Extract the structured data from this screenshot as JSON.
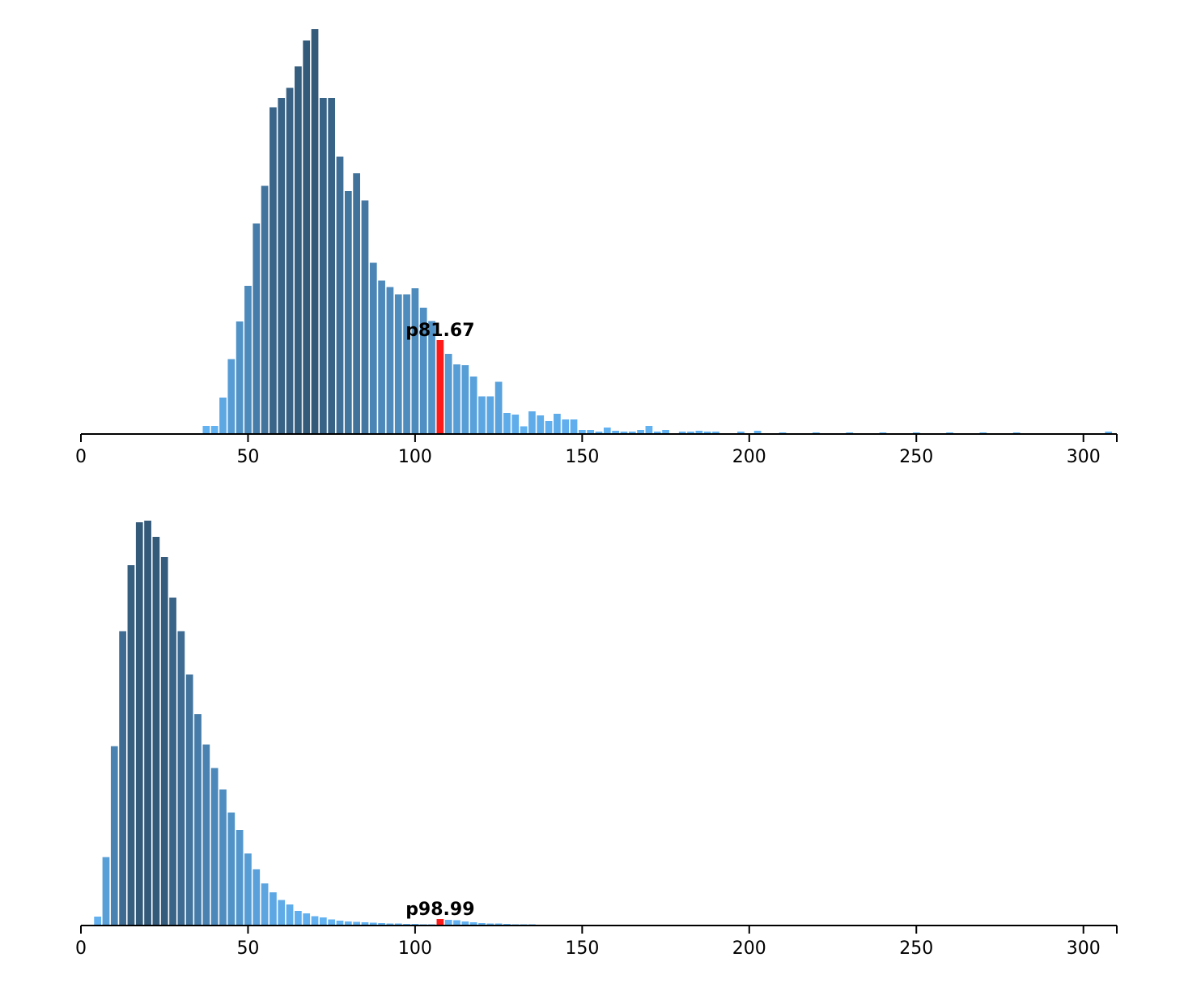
{
  "chart_data": [
    {
      "type": "bar",
      "title": "",
      "xlabel": "",
      "ylabel": "",
      "xlim": [
        0,
        310
      ],
      "ylim": [
        0,
        100
      ],
      "bin_width": 2.5,
      "x_ticks": [
        "0",
        "50",
        "100",
        "150",
        "200",
        "250",
        "300"
      ],
      "x_tick_values": [
        0,
        50,
        100,
        150,
        200,
        250,
        300
      ],
      "highlight": {
        "x": 107.5,
        "label": "p81.67",
        "color": "#ff1a1a"
      },
      "colors": {
        "low": "#64b5f6",
        "high": "#345a7a",
        "highlight": "#ff1a1a"
      },
      "grid": false,
      "bins": [
        {
          "x": 37.5,
          "y": 2.0
        },
        {
          "x": 40.0,
          "y": 2.0
        },
        {
          "x": 42.5,
          "y": 9.0
        },
        {
          "x": 45.0,
          "y": 18.5
        },
        {
          "x": 47.5,
          "y": 27.8
        },
        {
          "x": 50.0,
          "y": 36.6
        },
        {
          "x": 52.5,
          "y": 52.0
        },
        {
          "x": 55.0,
          "y": 61.3
        },
        {
          "x": 57.5,
          "y": 80.7
        },
        {
          "x": 60.0,
          "y": 83.0
        },
        {
          "x": 62.5,
          "y": 85.5
        },
        {
          "x": 65.0,
          "y": 90.8
        },
        {
          "x": 67.5,
          "y": 97.2
        },
        {
          "x": 70.0,
          "y": 100.0
        },
        {
          "x": 72.5,
          "y": 83.0
        },
        {
          "x": 75.0,
          "y": 83.0
        },
        {
          "x": 77.5,
          "y": 68.5
        },
        {
          "x": 80.0,
          "y": 60.0
        },
        {
          "x": 82.5,
          "y": 64.4
        },
        {
          "x": 85.0,
          "y": 57.7
        },
        {
          "x": 87.5,
          "y": 42.3
        },
        {
          "x": 90.0,
          "y": 37.9
        },
        {
          "x": 92.5,
          "y": 36.3
        },
        {
          "x": 95.0,
          "y": 34.5
        },
        {
          "x": 97.5,
          "y": 34.5
        },
        {
          "x": 100.0,
          "y": 36.0
        },
        {
          "x": 102.5,
          "y": 31.2
        },
        {
          "x": 105.0,
          "y": 27.9
        },
        {
          "x": 107.5,
          "y": 23.2
        },
        {
          "x": 110.0,
          "y": 19.8
        },
        {
          "x": 112.5,
          "y": 17.2
        },
        {
          "x": 115.0,
          "y": 17.0
        },
        {
          "x": 117.5,
          "y": 14.2
        },
        {
          "x": 120.0,
          "y": 9.3
        },
        {
          "x": 122.5,
          "y": 9.3
        },
        {
          "x": 125.0,
          "y": 12.9
        },
        {
          "x": 127.5,
          "y": 5.2
        },
        {
          "x": 130.0,
          "y": 4.8
        },
        {
          "x": 132.5,
          "y": 1.9
        },
        {
          "x": 135.0,
          "y": 5.6
        },
        {
          "x": 137.5,
          "y": 4.6
        },
        {
          "x": 140.0,
          "y": 3.2
        },
        {
          "x": 142.5,
          "y": 5.0
        },
        {
          "x": 145.0,
          "y": 3.6
        },
        {
          "x": 147.5,
          "y": 3.6
        },
        {
          "x": 150.0,
          "y": 1.0
        },
        {
          "x": 152.5,
          "y": 1.0
        },
        {
          "x": 155.0,
          "y": 0.6
        },
        {
          "x": 157.5,
          "y": 1.6
        },
        {
          "x": 160.0,
          "y": 0.8
        },
        {
          "x": 162.5,
          "y": 0.6
        },
        {
          "x": 165.0,
          "y": 0.6
        },
        {
          "x": 167.5,
          "y": 1.0
        },
        {
          "x": 170.0,
          "y": 2.0
        },
        {
          "x": 172.5,
          "y": 0.6
        },
        {
          "x": 175.0,
          "y": 1.0
        },
        {
          "x": 180.0,
          "y": 0.6
        },
        {
          "x": 182.5,
          "y": 0.6
        },
        {
          "x": 185.0,
          "y": 0.8
        },
        {
          "x": 187.5,
          "y": 0.6
        },
        {
          "x": 190.0,
          "y": 0.6
        },
        {
          "x": 197.5,
          "y": 0.6
        },
        {
          "x": 202.5,
          "y": 0.8
        },
        {
          "x": 210.0,
          "y": 0.4
        },
        {
          "x": 220.0,
          "y": 0.4
        },
        {
          "x": 230.0,
          "y": 0.4
        },
        {
          "x": 240.0,
          "y": 0.4
        },
        {
          "x": 250.0,
          "y": 0.4
        },
        {
          "x": 260.0,
          "y": 0.4
        },
        {
          "x": 270.0,
          "y": 0.4
        },
        {
          "x": 280.0,
          "y": 0.4
        },
        {
          "x": 307.5,
          "y": 0.6
        }
      ]
    },
    {
      "type": "bar",
      "title": "",
      "xlabel": "",
      "ylabel": "",
      "xlim": [
        0,
        310
      ],
      "ylim": [
        0,
        100
      ],
      "bin_width": 2.5,
      "x_ticks": [
        "0",
        "50",
        "100",
        "150",
        "200",
        "250",
        "300"
      ],
      "x_tick_values": [
        0,
        50,
        100,
        150,
        200,
        250,
        300
      ],
      "highlight": {
        "x": 107.5,
        "label": "p98.99",
        "color": "#ff1a1a"
      },
      "colors": {
        "low": "#64b5f6",
        "high": "#345a7a",
        "highlight": "#ff1a1a"
      },
      "grid": false,
      "bins": [
        {
          "x": 5.0,
          "y": 2.2
        },
        {
          "x": 7.5,
          "y": 16.9
        },
        {
          "x": 10.0,
          "y": 44.3
        },
        {
          "x": 12.5,
          "y": 72.7
        },
        {
          "x": 15.0,
          "y": 89.0
        },
        {
          "x": 17.5,
          "y": 99.6
        },
        {
          "x": 20.0,
          "y": 100.0
        },
        {
          "x": 22.5,
          "y": 96.0
        },
        {
          "x": 25.0,
          "y": 91.0
        },
        {
          "x": 27.5,
          "y": 81.0
        },
        {
          "x": 30.0,
          "y": 72.7
        },
        {
          "x": 32.5,
          "y": 62.0
        },
        {
          "x": 35.0,
          "y": 52.2
        },
        {
          "x": 37.5,
          "y": 44.7
        },
        {
          "x": 40.0,
          "y": 38.9
        },
        {
          "x": 42.5,
          "y": 33.6
        },
        {
          "x": 45.0,
          "y": 27.9
        },
        {
          "x": 47.5,
          "y": 23.6
        },
        {
          "x": 50.0,
          "y": 17.8
        },
        {
          "x": 52.5,
          "y": 13.9
        },
        {
          "x": 55.0,
          "y": 10.4
        },
        {
          "x": 57.5,
          "y": 8.2
        },
        {
          "x": 60.0,
          "y": 6.3
        },
        {
          "x": 62.5,
          "y": 5.2
        },
        {
          "x": 65.0,
          "y": 3.6
        },
        {
          "x": 67.5,
          "y": 3.0
        },
        {
          "x": 70.0,
          "y": 2.3
        },
        {
          "x": 72.5,
          "y": 2.0
        },
        {
          "x": 75.0,
          "y": 1.5
        },
        {
          "x": 77.5,
          "y": 1.2
        },
        {
          "x": 80.0,
          "y": 1.0
        },
        {
          "x": 82.5,
          "y": 0.9
        },
        {
          "x": 85.0,
          "y": 0.8
        },
        {
          "x": 87.5,
          "y": 0.7
        },
        {
          "x": 90.0,
          "y": 0.6
        },
        {
          "x": 92.5,
          "y": 0.5
        },
        {
          "x": 95.0,
          "y": 0.5
        },
        {
          "x": 97.5,
          "y": 0.4
        },
        {
          "x": 100.0,
          "y": 0.4
        },
        {
          "x": 102.5,
          "y": 0.3
        },
        {
          "x": 105.0,
          "y": 0.3
        },
        {
          "x": 107.5,
          "y": 1.6
        },
        {
          "x": 110.0,
          "y": 1.4
        },
        {
          "x": 112.5,
          "y": 1.3
        },
        {
          "x": 115.0,
          "y": 1.0
        },
        {
          "x": 117.5,
          "y": 0.8
        },
        {
          "x": 120.0,
          "y": 0.6
        },
        {
          "x": 122.5,
          "y": 0.5
        },
        {
          "x": 125.0,
          "y": 0.5
        },
        {
          "x": 127.5,
          "y": 0.4
        },
        {
          "x": 130.0,
          "y": 0.3
        },
        {
          "x": 132.5,
          "y": 0.3
        },
        {
          "x": 135.0,
          "y": 0.3
        },
        {
          "x": 137.5,
          "y": 0.2
        },
        {
          "x": 140.0,
          "y": 0.2
        },
        {
          "x": 142.5,
          "y": 0.2
        },
        {
          "x": 145.0,
          "y": 0.2
        },
        {
          "x": 147.5,
          "y": 0.2
        },
        {
          "x": 150.0,
          "y": 0.2
        },
        {
          "x": 152.5,
          "y": 0.2
        },
        {
          "x": 155.0,
          "y": 0.2
        },
        {
          "x": 157.5,
          "y": 0.2
        },
        {
          "x": 160.0,
          "y": 0.2
        },
        {
          "x": 162.5,
          "y": 0.2
        },
        {
          "x": 165.0,
          "y": 0.2
        },
        {
          "x": 167.5,
          "y": 0.2
        },
        {
          "x": 170.0,
          "y": 0.2
        }
      ]
    }
  ]
}
